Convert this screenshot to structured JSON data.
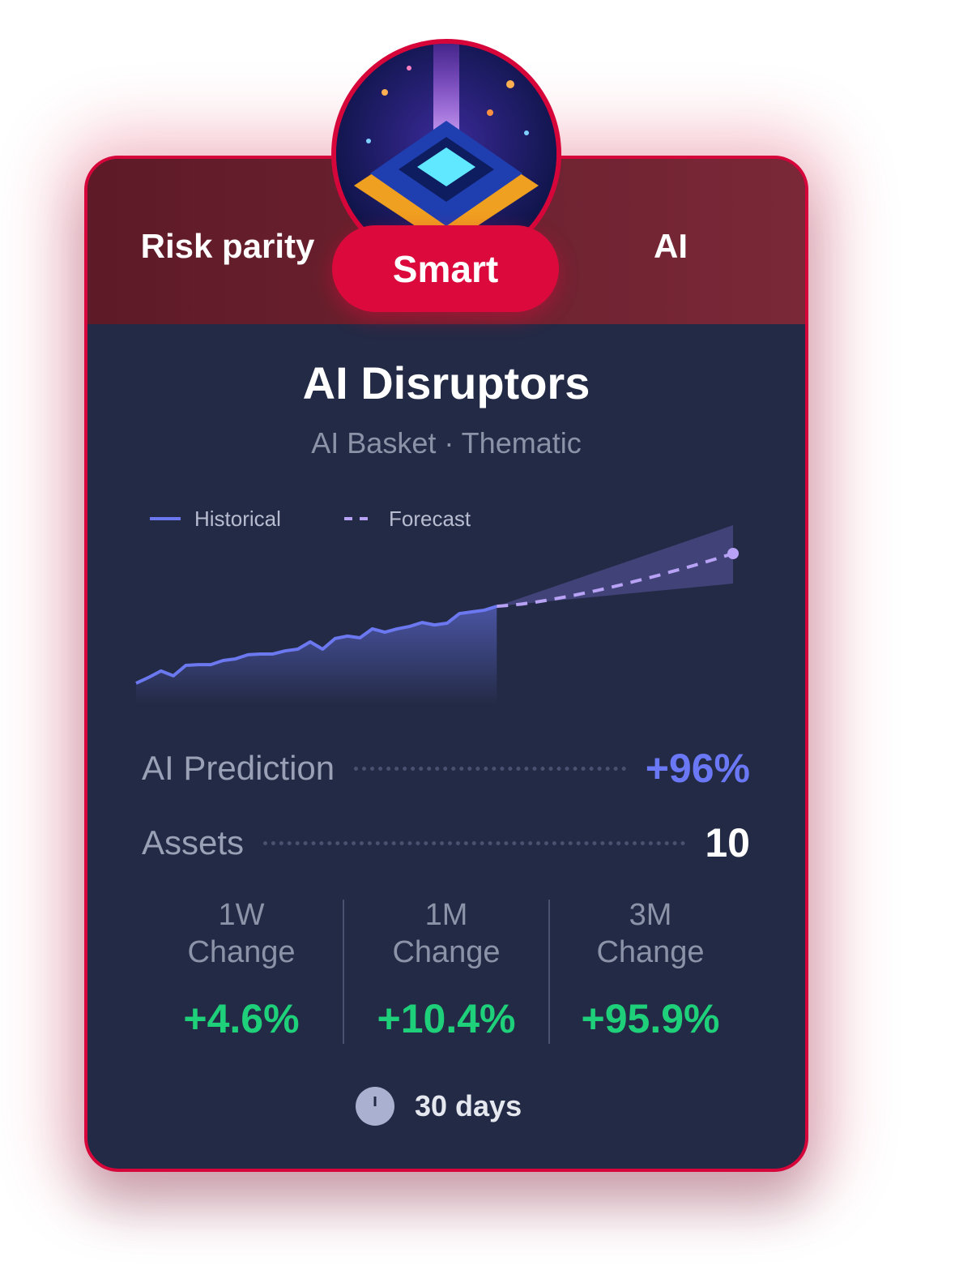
{
  "header": {
    "tabs": [
      "Risk parity",
      "Smart",
      "AI"
    ],
    "active_tab": 1
  },
  "title": "AI Disruptors",
  "subtitle": "AI Basket · Thematic",
  "chart_data": {
    "type": "line",
    "x": [
      0,
      1,
      2,
      3,
      4,
      5,
      6,
      7,
      8,
      9,
      10,
      11,
      12,
      13,
      14,
      15,
      16,
      17,
      18,
      19,
      20,
      21,
      22,
      23,
      24,
      25,
      26,
      27,
      28,
      29,
      30,
      31,
      32,
      33,
      34,
      35,
      36,
      37,
      38,
      39,
      40,
      41,
      42,
      43,
      44,
      45,
      46,
      47,
      48
    ],
    "xlim": [
      0,
      48
    ],
    "ylim": [
      0,
      100
    ],
    "series": [
      {
        "name": "Historical",
        "color": "#6b78f0",
        "values": [
          11.7,
          14.8,
          18.3,
          15.7,
          21.3,
          21.7,
          21.7,
          23.9,
          24.8,
          27.0,
          27.4,
          27.4,
          29.1,
          30.0,
          33.9,
          30.0,
          35.7,
          37.0,
          36.1,
          40.9,
          39.1,
          40.9,
          42.2,
          44.3,
          43.0,
          43.9,
          49.1,
          50.0,
          50.9,
          53.0,
          null,
          null,
          null,
          null,
          null,
          null,
          null,
          null,
          null,
          null,
          null,
          null,
          null,
          null,
          null,
          null,
          null,
          null,
          null
        ]
      },
      {
        "name": "Forecast",
        "color": "#b7a2f5",
        "dashed": true,
        "values": [
          null,
          null,
          null,
          null,
          null,
          null,
          null,
          null,
          null,
          null,
          null,
          null,
          null,
          null,
          null,
          null,
          null,
          null,
          null,
          null,
          null,
          null,
          null,
          null,
          null,
          null,
          null,
          null,
          null,
          53.0,
          53.5,
          54.2,
          55.1,
          56.2,
          57.4,
          58.6,
          60.0,
          61.4,
          62.9,
          64.5,
          66.2,
          67.9,
          69.6,
          71.5,
          73.3,
          75.2,
          77.2,
          79.2,
          81.3
        ]
      }
    ],
    "band": {
      "color": "#7c6fd6",
      "upper": [
        null,
        null,
        null,
        null,
        null,
        null,
        null,
        null,
        null,
        null,
        null,
        null,
        null,
        null,
        null,
        null,
        null,
        null,
        null,
        null,
        null,
        null,
        null,
        null,
        null,
        null,
        null,
        null,
        null,
        53.0,
        null,
        null,
        null,
        null,
        null,
        null,
        null,
        null,
        null,
        null,
        null,
        null,
        null,
        null,
        null,
        null,
        null,
        null,
        96.5
      ],
      "lower": [
        null,
        null,
        null,
        null,
        null,
        null,
        null,
        null,
        null,
        null,
        null,
        null,
        null,
        null,
        null,
        null,
        null,
        null,
        null,
        null,
        null,
        null,
        null,
        null,
        null,
        null,
        null,
        null,
        null,
        53.0,
        null,
        null,
        null,
        null,
        null,
        null,
        null,
        null,
        null,
        null,
        null,
        null,
        null,
        null,
        null,
        null,
        null,
        null,
        65.2
      ]
    }
  },
  "stats": [
    {
      "label": "AI Prediction",
      "value": "+96%",
      "color": "#6b78f5"
    },
    {
      "label": "Assets",
      "value": "10",
      "color": "#ffffff"
    }
  ],
  "changes": [
    {
      "period": "1W",
      "label": "Change",
      "value": "+4.6%"
    },
    {
      "period": "1M",
      "label": "Change",
      "value": "+10.4%"
    },
    {
      "period": "3M",
      "label": "Change",
      "value": "+95.9%"
    }
  ],
  "duration": "30 days"
}
